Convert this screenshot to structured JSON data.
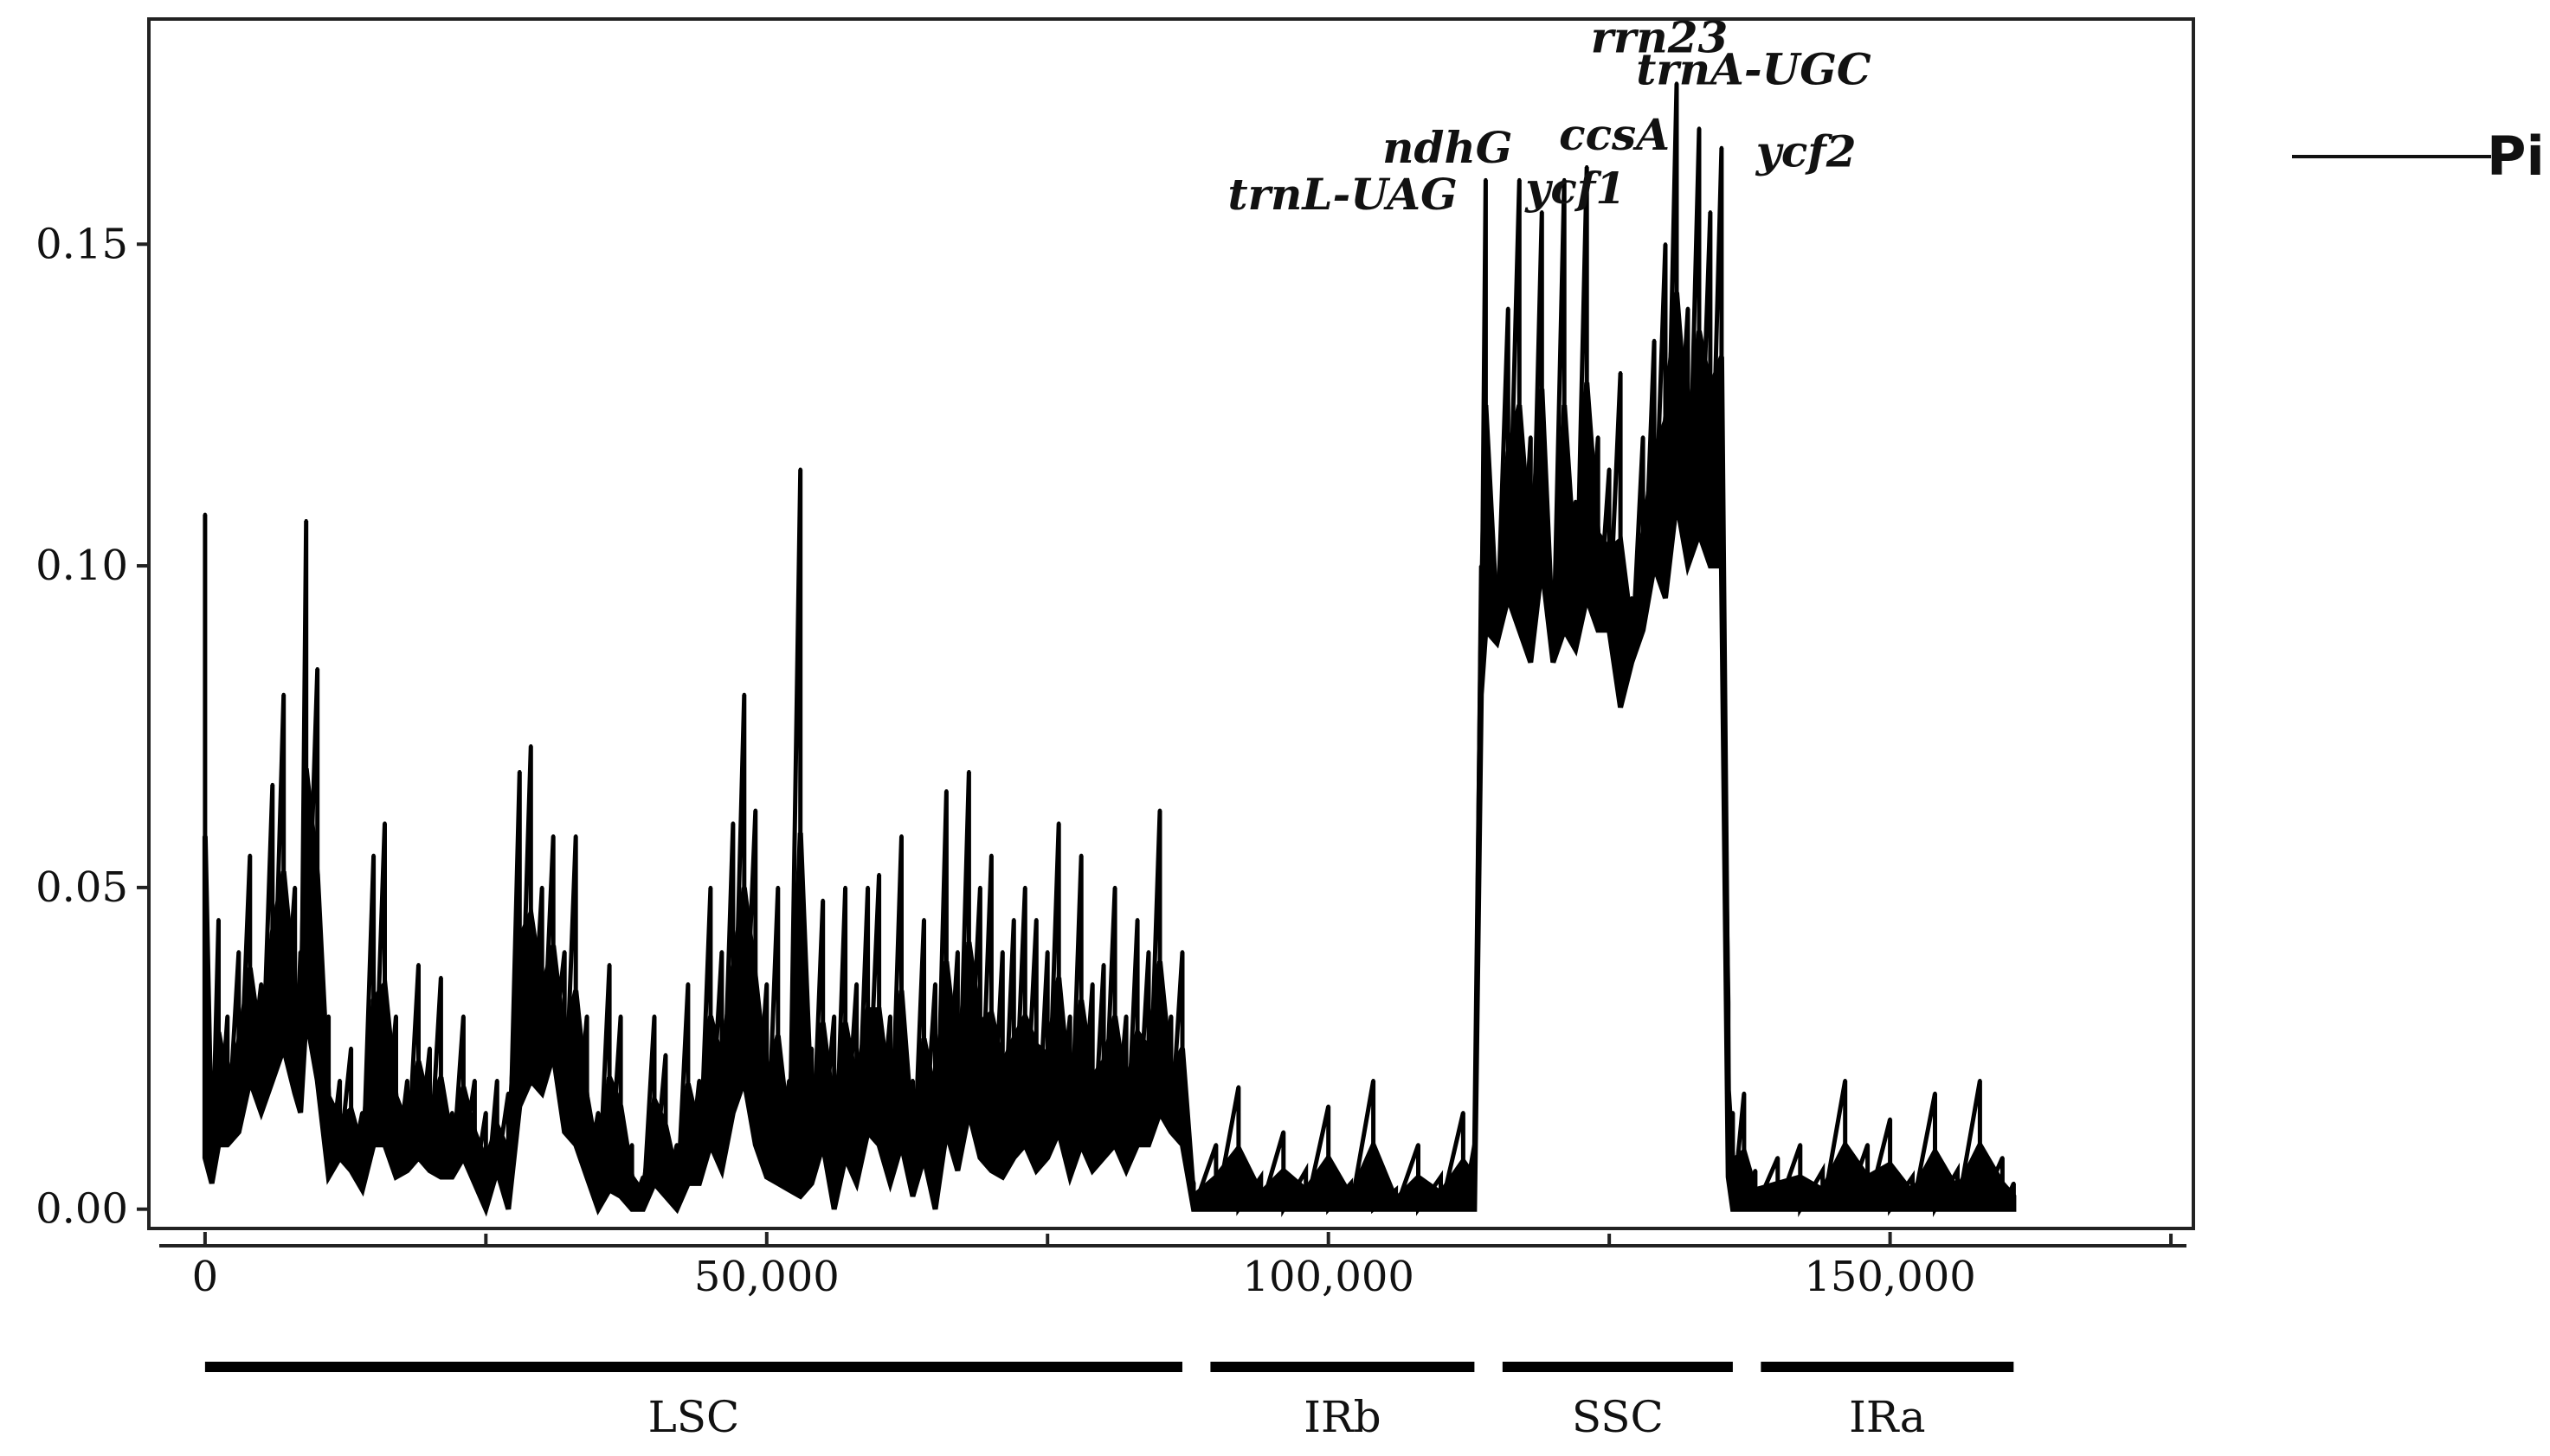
{
  "chart_data": {
    "type": "line",
    "title": "",
    "xlabel": "",
    "ylabel": "",
    "xlim": [
      -5000,
      177000
    ],
    "ylim": [
      -0.003,
      0.185
    ],
    "x_ticks": [
      {
        "value": 0,
        "label": "0"
      },
      {
        "value": 50000,
        "label": "50,000"
      },
      {
        "value": 100000,
        "label": "100,000"
      },
      {
        "value": 150000,
        "label": "150,000"
      }
    ],
    "y_ticks": [
      {
        "value": 0.0,
        "label": "0.00"
      },
      {
        "value": 0.05,
        "label": "0.05"
      },
      {
        "value": 0.1,
        "label": "0.10"
      },
      {
        "value": 0.15,
        "label": "0.15"
      }
    ],
    "legend": {
      "position": "right",
      "entries": [
        "Pi"
      ]
    },
    "series": [
      {
        "name": "Pi",
        "color": "#000000",
        "x": [
          0,
          600,
          1200,
          2000,
          3000,
          4000,
          5000,
          6000,
          7000,
          8000,
          8500,
          9000,
          10000,
          11000,
          12000,
          13000,
          14000,
          15000,
          16000,
          17000,
          18000,
          19000,
          20000,
          21000,
          22000,
          23000,
          24000,
          25000,
          26000,
          27000,
          28000,
          29000,
          30000,
          31000,
          32000,
          33000,
          34000,
          35000,
          36000,
          37000,
          38000,
          39000,
          40000,
          41000,
          42000,
          43000,
          44000,
          45000,
          46000,
          47000,
          48000,
          49000,
          50000,
          51000,
          52000,
          53000,
          54000,
          55000,
          56000,
          57000,
          58000,
          59000,
          60000,
          61000,
          62000,
          63000,
          64000,
          65000,
          66000,
          67000,
          68000,
          69000,
          70000,
          71000,
          72000,
          73000,
          74000,
          75000,
          76000,
          77000,
          78000,
          79000,
          80000,
          81000,
          82000,
          83000,
          84000,
          85000,
          86000,
          87000,
          88000,
          90000,
          92000,
          94000,
          96000,
          98000,
          100000,
          102000,
          104000,
          106000,
          108000,
          110000,
          112000,
          113000,
          113600,
          114000,
          115000,
          116000,
          117000,
          118000,
          119000,
          120000,
          121000,
          122000,
          123000,
          124000,
          125000,
          126000,
          127000,
          128000,
          129000,
          130000,
          131000,
          132000,
          133000,
          134000,
          135000,
          135600,
          136000,
          137000,
          138000,
          140000,
          142000,
          144000,
          146000,
          148000,
          150000,
          152000,
          154000,
          156000,
          158000,
          160000,
          161000
        ],
        "values": [
          0.108,
          0.01,
          0.045,
          0.03,
          0.04,
          0.055,
          0.035,
          0.066,
          0.08,
          0.05,
          0.04,
          0.107,
          0.084,
          0.03,
          0.02,
          0.025,
          0.015,
          0.055,
          0.06,
          0.03,
          0.02,
          0.038,
          0.025,
          0.036,
          0.015,
          0.03,
          0.02,
          0.015,
          0.02,
          0.018,
          0.068,
          0.072,
          0.05,
          0.058,
          0.04,
          0.058,
          0.03,
          0.015,
          0.038,
          0.03,
          0.01,
          0.005,
          0.03,
          0.024,
          0.01,
          0.035,
          0.02,
          0.05,
          0.04,
          0.06,
          0.08,
          0.062,
          0.035,
          0.05,
          0.02,
          0.115,
          0.025,
          0.048,
          0.03,
          0.05,
          0.035,
          0.05,
          0.052,
          0.03,
          0.058,
          0.02,
          0.045,
          0.035,
          0.065,
          0.04,
          0.068,
          0.05,
          0.055,
          0.04,
          0.045,
          0.05,
          0.045,
          0.04,
          0.06,
          0.03,
          0.055,
          0.035,
          0.038,
          0.05,
          0.03,
          0.045,
          0.04,
          0.062,
          0.03,
          0.04,
          0.004,
          0.01,
          0.019,
          0.005,
          0.012,
          0.006,
          0.016,
          0.004,
          0.02,
          0.003,
          0.01,
          0.005,
          0.015,
          0.01,
          0.1,
          0.16,
          0.095,
          0.14,
          0.16,
          0.12,
          0.155,
          0.09,
          0.16,
          0.11,
          0.162,
          0.12,
          0.115,
          0.13,
          0.095,
          0.12,
          0.135,
          0.15,
          0.175,
          0.14,
          0.168,
          0.155,
          0.165,
          0.032,
          0.015,
          0.018,
          0.006,
          0.008,
          0.01,
          0.006,
          0.02,
          0.01,
          0.014,
          0.005,
          0.018,
          0.006,
          0.02,
          0.008,
          0.004
        ],
        "lower": [
          0.008,
          0.004,
          0.01,
          0.01,
          0.012,
          0.02,
          0.015,
          0.02,
          0.025,
          0.018,
          0.015,
          0.03,
          0.02,
          0.005,
          0.008,
          0.006,
          0.003,
          0.01,
          0.01,
          0.005,
          0.006,
          0.008,
          0.006,
          0.005,
          0.005,
          0.008,
          0.004,
          0.0,
          0.006,
          0.0,
          0.016,
          0.02,
          0.018,
          0.024,
          0.012,
          0.01,
          0.005,
          0.0,
          0.003,
          0.002,
          0.0,
          0.0,
          0.004,
          0.002,
          0.0,
          0.004,
          0.004,
          0.01,
          0.006,
          0.015,
          0.02,
          0.01,
          0.005,
          0.004,
          0.003,
          0.002,
          0.004,
          0.01,
          0.0,
          0.008,
          0.004,
          0.012,
          0.01,
          0.004,
          0.01,
          0.002,
          0.008,
          0.0,
          0.012,
          0.006,
          0.015,
          0.008,
          0.006,
          0.005,
          0.008,
          0.01,
          0.006,
          0.008,
          0.012,
          0.005,
          0.01,
          0.006,
          0.008,
          0.01,
          0.006,
          0.01,
          0.01,
          0.015,
          0.012,
          0.01,
          0.0,
          0.0,
          0.0,
          0.0,
          0.0,
          0.0,
          0.0,
          0.0,
          0.0,
          0.0,
          0.0,
          0.0,
          0.0,
          0.0,
          0.08,
          0.09,
          0.088,
          0.095,
          0.09,
          0.085,
          0.1,
          0.085,
          0.09,
          0.087,
          0.095,
          0.09,
          0.09,
          0.078,
          0.085,
          0.09,
          0.1,
          0.095,
          0.11,
          0.1,
          0.105,
          0.1,
          0.1,
          0.005,
          0.0,
          0.0,
          0.0,
          0.0,
          0.0,
          0.0,
          0.0,
          0.0,
          0.0,
          0.0,
          0.0,
          0.0,
          0.0,
          0.0,
          0.0
        ]
      }
    ],
    "annotations": [
      {
        "text": "trnL-UAG",
        "x": 113600,
        "y": 0.16
      },
      {
        "text": "ndhG",
        "x": 116000,
        "y": 0.16
      },
      {
        "text": "ycf1",
        "x": 122000,
        "y": 0.162
      },
      {
        "text": "ccsA",
        "x": 127000,
        "y": 0.162
      },
      {
        "text": "rrn23",
        "x": 131000,
        "y": 0.175
      },
      {
        "text": "trnA-UGC",
        "x": 132000,
        "y": 0.17
      },
      {
        "text": "ycf2",
        "x": 135600,
        "y": 0.165
      }
    ],
    "regions": [
      {
        "label": "LSC",
        "start": 0,
        "end": 87000
      },
      {
        "label": "IRb",
        "start": 89500,
        "end": 113000
      },
      {
        "label": "SSC",
        "start": 115500,
        "end": 136000
      },
      {
        "label": "IRa",
        "start": 138500,
        "end": 161000
      }
    ]
  }
}
